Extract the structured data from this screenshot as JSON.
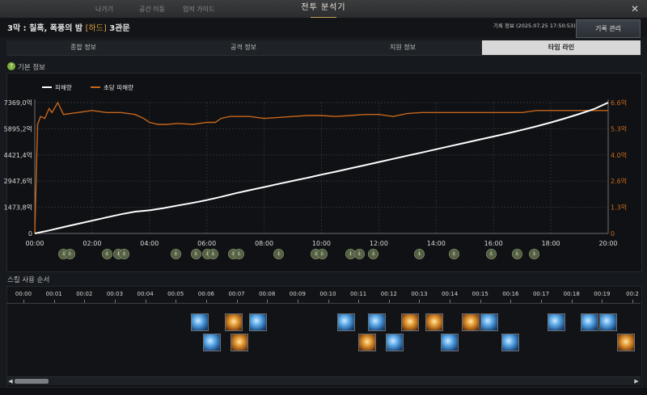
{
  "window": {
    "title": "전투 분석기",
    "close_glyph": "✕",
    "background_text": [
      "나가기",
      "공간 이동",
      "업적 가이드"
    ]
  },
  "header": {
    "stage_prefix": "3막 : 칠흑, 폭풍의 밤",
    "difficulty": "[하드]",
    "gate": "3관문",
    "record_info": "기록 정보 (2025.07.25 17:50:53)",
    "record_button": "기록 관리"
  },
  "tabs": [
    {
      "label": "종합 정보",
      "active": false
    },
    {
      "label": "공격 정보",
      "active": false
    },
    {
      "label": "지원 정보",
      "active": false
    },
    {
      "label": "타임 라인",
      "active": true
    }
  ],
  "basic_info_label": "기본 정보",
  "help_glyph": "?",
  "marker_glyph": "i",
  "skill_section_label": "스킬 사용 순서",
  "colors": {
    "damage_line": "#ffffff",
    "dps_line": "#c8661a",
    "accent_tab": "#d8d8d8",
    "difficulty": "#e0a040"
  },
  "chart_data": {
    "type": "line",
    "legend": [
      "피해량",
      "초당 피해량"
    ],
    "x_ticks": [
      "00:00",
      "02:00",
      "04:00",
      "06:00",
      "08:00",
      "10:00",
      "12:00",
      "14:00",
      "16:00",
      "18:00",
      "20:00"
    ],
    "x_range_minutes": [
      0,
      20
    ],
    "y_left_ticks": [
      "0",
      "1473,8억",
      "2947,6억",
      "4421,4억",
      "5895,2억",
      "7369,0억"
    ],
    "y_left_range": [
      0,
      7369.0
    ],
    "y_right_ticks": [
      "0",
      "1.3억",
      "2.6억",
      "4.0억",
      "5.3억",
      "6.6억"
    ],
    "y_right_range": [
      0,
      6.6
    ],
    "series": [
      {
        "name": "피해량",
        "axis": "left",
        "x": [
          0,
          0.5,
          1,
          1.5,
          2,
          2.5,
          3,
          3.5,
          4,
          4.5,
          5,
          5.5,
          6,
          6.5,
          7,
          7.5,
          8,
          8.5,
          9,
          9.5,
          10,
          10.5,
          11,
          11.5,
          12,
          12.5,
          13,
          13.5,
          14,
          14.5,
          15,
          15.5,
          16,
          16.5,
          17,
          17.5,
          18,
          18.5,
          19,
          19.5,
          20
        ],
        "values": [
          0,
          170,
          360,
          540,
          720,
          900,
          1080,
          1230,
          1300,
          1430,
          1580,
          1720,
          1880,
          2060,
          2260,
          2440,
          2610,
          2790,
          2960,
          3130,
          3310,
          3480,
          3660,
          3840,
          4020,
          4200,
          4380,
          4560,
          4740,
          4920,
          5100,
          5280,
          5460,
          5640,
          5830,
          6030,
          6250,
          6480,
          6730,
          7000,
          7369
        ]
      },
      {
        "name": "초당 피해량",
        "axis": "right",
        "x": [
          0,
          0.1,
          0.2,
          0.35,
          0.5,
          0.6,
          0.8,
          1,
          1.5,
          2,
          2.5,
          3,
          3.5,
          3.8,
          4,
          4.3,
          4.6,
          5,
          5.5,
          6,
          6.3,
          6.5,
          6.8,
          7,
          7.5,
          8,
          8.5,
          9,
          9.5,
          10,
          10.5,
          11,
          11.5,
          12,
          12.5,
          13,
          13.5,
          14,
          14.5,
          15,
          15.5,
          16,
          16.5,
          17,
          17.5,
          18,
          18.5,
          19,
          19.5,
          20
        ],
        "values": [
          0,
          5.5,
          5.9,
          5.8,
          6.3,
          6.1,
          6.6,
          6.0,
          6.1,
          6.2,
          6.1,
          6.1,
          6.0,
          5.8,
          5.6,
          5.5,
          5.5,
          5.55,
          5.5,
          5.6,
          5.6,
          5.8,
          5.9,
          5.9,
          5.9,
          5.8,
          5.85,
          5.9,
          5.95,
          5.95,
          5.9,
          5.95,
          6.0,
          6.0,
          5.9,
          6.05,
          6.1,
          6.1,
          6.1,
          6.1,
          6.1,
          6.1,
          6.1,
          6.1,
          6.2,
          6.2,
          6.2,
          6.2,
          6.2,
          6.2
        ]
      }
    ],
    "grid": true,
    "legend_position": "top-left"
  },
  "timeline_markers_minutes": [
    1.0,
    1.2,
    2.5,
    2.9,
    3.1,
    4.9,
    5.6,
    6.0,
    6.2,
    6.9,
    7.1,
    8.5,
    9.8,
    10.0,
    11.0,
    11.3,
    11.8,
    13.4,
    14.6,
    15.9,
    16.8,
    17.4
  ],
  "skill_timeline": {
    "ticks": [
      "00:00",
      "00:01",
      "00:02",
      "00:03",
      "00:04",
      "00:05",
      "00:06",
      "00:07",
      "00:08",
      "00:09",
      "00:10",
      "00:11",
      "00:12",
      "00:13",
      "00:14",
      "00:15",
      "00:16",
      "00:17",
      "00:18",
      "00:19",
      "00:2"
    ],
    "icons": [
      {
        "second": 5.8,
        "row": 0,
        "type": "blue",
        "name": "skill-icon-blue-burst"
      },
      {
        "second": 6.9,
        "row": 0,
        "type": "orange",
        "name": "skill-icon-orange-spear"
      },
      {
        "second": 7.7,
        "row": 0,
        "type": "blue",
        "name": "skill-icon-blue-slash"
      },
      {
        "second": 6.2,
        "row": 1,
        "type": "blue",
        "name": "skill-icon-blue-strike"
      },
      {
        "second": 7.1,
        "row": 1,
        "type": "orange",
        "name": "skill-icon-orange-seal"
      },
      {
        "second": 10.6,
        "row": 0,
        "type": "blue",
        "name": "skill-icon-blue-wave"
      },
      {
        "second": 11.6,
        "row": 0,
        "type": "blue",
        "name": "skill-icon-blue-sweep"
      },
      {
        "second": 12.7,
        "row": 0,
        "type": "orange",
        "name": "skill-icon-orange-pillar"
      },
      {
        "second": 13.5,
        "row": 0,
        "type": "orange",
        "name": "skill-icon-orange-flame"
      },
      {
        "second": 14.7,
        "row": 0,
        "type": "orange",
        "name": "skill-icon-orange-blast"
      },
      {
        "second": 15.3,
        "row": 0,
        "type": "blue",
        "name": "skill-icon-blue-orb"
      },
      {
        "second": 11.3,
        "row": 1,
        "type": "orange",
        "name": "skill-icon-orange-cross"
      },
      {
        "second": 12.2,
        "row": 1,
        "type": "blue",
        "name": "skill-icon-blue-arc"
      },
      {
        "second": 14.0,
        "row": 1,
        "type": "blue",
        "name": "skill-icon-blue-swirl"
      },
      {
        "second": 16.0,
        "row": 1,
        "type": "blue",
        "name": "skill-icon-blue-lance"
      },
      {
        "second": 17.5,
        "row": 0,
        "type": "blue",
        "name": "skill-icon-blue-spiral"
      },
      {
        "second": 18.6,
        "row": 0,
        "type": "blue",
        "name": "skill-icon-blue-wing"
      },
      {
        "second": 19.2,
        "row": 0,
        "type": "blue",
        "name": "skill-icon-blue-crescent"
      },
      {
        "second": 19.8,
        "row": 1,
        "type": "orange",
        "name": "skill-icon-orange-gate"
      }
    ]
  },
  "scrollbar": {
    "left_glyph": "◀",
    "right_glyph": "▶"
  }
}
